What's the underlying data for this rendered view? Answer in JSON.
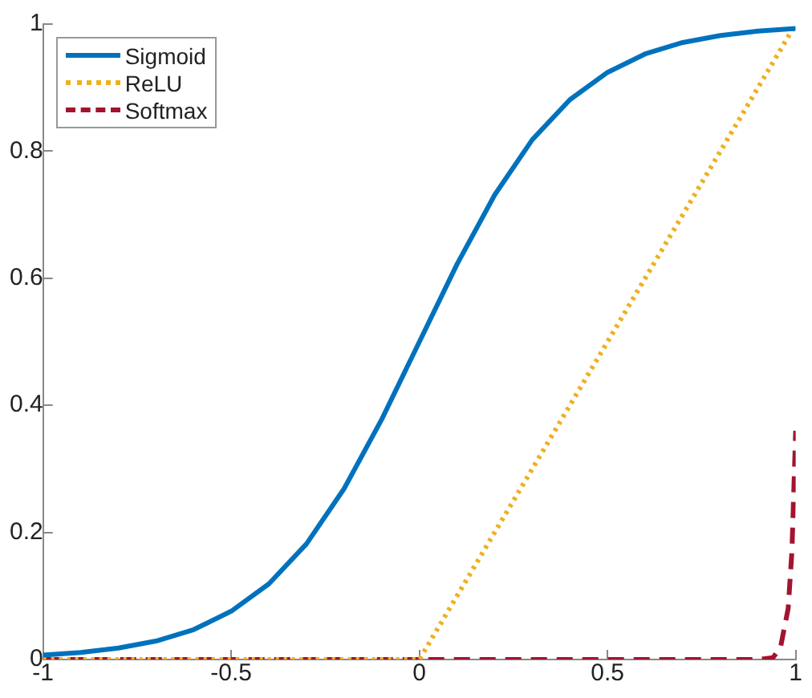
{
  "chart_data": {
    "type": "line",
    "xlim": [
      -1,
      1
    ],
    "ylim": [
      0,
      1
    ],
    "xticks": [
      -1,
      -0.5,
      0,
      0.5,
      1
    ],
    "yticks": [
      0,
      0.2,
      0.4,
      0.6,
      0.8,
      1
    ],
    "grid": false,
    "legend": "top left",
    "marker": "none",
    "series": [
      {
        "name": "Sigmoid",
        "color": "#0072bd",
        "line_style": "solid",
        "x": [
          -1,
          -0.9,
          -0.8,
          -0.7,
          -0.6,
          -0.5,
          -0.4,
          -0.3,
          -0.2,
          -0.1,
          0,
          0.1,
          0.2,
          0.3,
          0.4,
          0.5,
          0.6,
          0.7,
          0.8,
          0.9,
          1
        ],
        "values": [
          0.007,
          0.011,
          0.018,
          0.029,
          0.047,
          0.076,
          0.119,
          0.182,
          0.269,
          0.378,
          0.5,
          0.622,
          0.731,
          0.818,
          0.881,
          0.924,
          0.953,
          0.971,
          0.982,
          0.989,
          0.993
        ]
      },
      {
        "name": "ReLU",
        "color": "#edb120",
        "line_style": "dotted",
        "x": [
          -1,
          0,
          1
        ],
        "values": [
          0,
          0,
          1
        ]
      },
      {
        "name": "Softmax",
        "color": "#a2142f",
        "line_style": "dashed",
        "x": [
          -1,
          0.9,
          0.94,
          0.96,
          0.98,
          0.99,
          1
        ],
        "values": [
          0,
          0,
          0.003,
          0.02,
          0.08,
          0.17,
          0.36
        ]
      }
    ]
  }
}
